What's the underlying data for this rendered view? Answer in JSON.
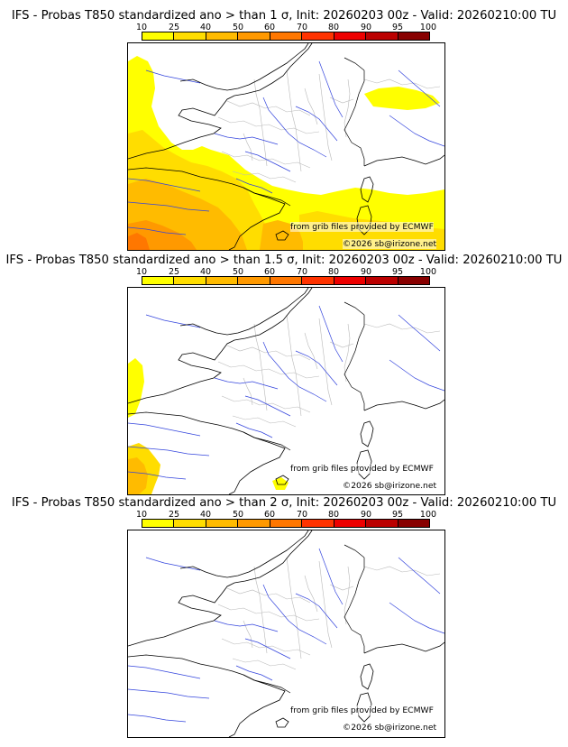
{
  "colorbar": {
    "labels": [
      "10",
      "25",
      "40",
      "50",
      "60",
      "70",
      "80",
      "90",
      "95",
      "100"
    ],
    "colors": [
      "#ffff00",
      "#ffdd00",
      "#ffbb00",
      "#ff9900",
      "#ff7700",
      "#ff3300",
      "#ee0000",
      "#bb0000",
      "#880000"
    ]
  },
  "panels": [
    {
      "title": "IFS - Probas T850  standardized ano > than 1 σ, Init: 20260203 00z - Valid: 20260210:00 TU",
      "provider": "from grib files provided by ECMWF",
      "copyright": "©2026 sb@irizone.net",
      "shading": "high"
    },
    {
      "title": "IFS - Probas T850  standardized ano > than 1.5 σ, Init: 20260203 00z - Valid: 20260210:00 TU",
      "provider": "from grib files provided by ECMWF",
      "copyright": "©2026 sb@irizone.net",
      "shading": "low"
    },
    {
      "title": "IFS - Probas T850  standardized ano > than 2 σ, Init: 20260203 00z - Valid: 20260210:00 TU",
      "provider": "from grib files provided by ECMWF",
      "copyright": "©2026 sb@irizone.net",
      "shading": "none"
    }
  ]
}
